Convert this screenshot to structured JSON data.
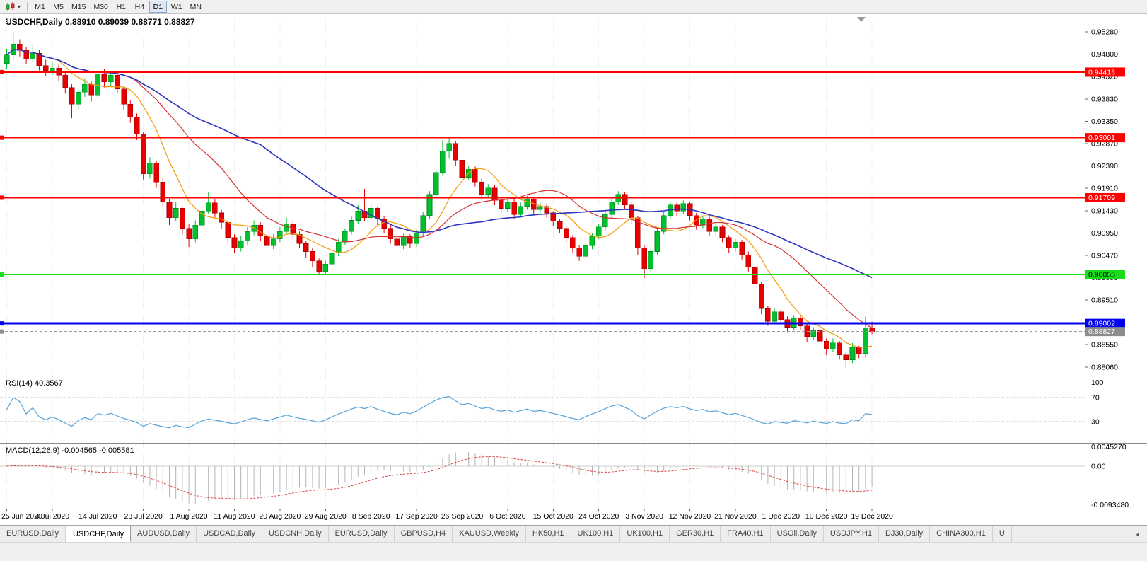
{
  "toolbar": {
    "dropdown_caret": "▾",
    "timeframes": [
      "M1",
      "M5",
      "M15",
      "M30",
      "H1",
      "H4",
      "D1",
      "W1",
      "MN"
    ],
    "active_timeframe": "D1"
  },
  "chart": {
    "symbol": "USDCHF",
    "period": "Daily",
    "title_text": "USDCHF,Daily 0.88910 0.89039 0.88771 0.88827",
    "ohlc": {
      "open": "0.88910",
      "high": "0.89039",
      "low": "0.88771",
      "close": "0.88827"
    },
    "up_color": "#00C02E",
    "down_color": "#E60000",
    "price_axis_ticks": [
      "0.95280",
      "0.94800",
      "0.94320",
      "0.93830",
      "0.93350",
      "0.92870",
      "0.92390",
      "0.91910",
      "0.91430",
      "0.90950",
      "0.90470",
      "0.89990",
      "0.89510",
      "0.89030",
      "0.88550",
      "0.88060"
    ],
    "hlines": [
      {
        "price": 0.94413,
        "label": "0.94413",
        "color": "#FF0000",
        "width": 1.8
      },
      {
        "price": 0.93001,
        "label": "0.93001",
        "color": "#FF0000",
        "width": 1.8
      },
      {
        "price": 0.91709,
        "label": "0.91709",
        "color": "#FF0000",
        "width": 1.8
      },
      {
        "price": 0.90055,
        "label": "0.90055",
        "color": "#18DD18",
        "width": 2,
        "text_color": "#000000"
      },
      {
        "price": 0.89002,
        "label": "0.89002",
        "color": "#0000F0",
        "width": 3
      }
    ],
    "bid": {
      "price": 0.88827,
      "label": "0.88827",
      "color": "#8c8c8c"
    },
    "date_labels": [
      "25 Jun 2020",
      "4 Jul 2020",
      "14 Jul 2020",
      "23 Jul 2020",
      "1 Aug 2020",
      "11 Aug 2020",
      "20 Aug 2020",
      "29 Aug 2020",
      "8 Sep 2020",
      "17 Sep 2020",
      "26 Sep 2020",
      "6 Oct 2020",
      "15 Oct 2020",
      "24 Oct 2020",
      "3 Nov 2020",
      "12 Nov 2020",
      "21 Nov 2020",
      "1 Dec 2020",
      "10 Dec 2020",
      "19 Dec 2020"
    ],
    "moving_averages": [
      {
        "name": "ma-fast",
        "period": 8,
        "color": "#F59B00",
        "width": 1.2
      },
      {
        "name": "ma-mid",
        "period": 20,
        "color": "#D93030",
        "width": 1.2
      },
      {
        "name": "ma-slow",
        "period": 40,
        "color": "#2A35C0",
        "width": 1.6
      }
    ],
    "candles": [
      [
        0.946,
        0.9492,
        0.9448,
        0.9478
      ],
      [
        0.9478,
        0.9528,
        0.947,
        0.9502
      ],
      [
        0.9502,
        0.9512,
        0.9475,
        0.9488
      ],
      [
        0.9488,
        0.9495,
        0.9458,
        0.947
      ],
      [
        0.947,
        0.95,
        0.9462,
        0.9482
      ],
      [
        0.9482,
        0.949,
        0.9445,
        0.9455
      ],
      [
        0.9455,
        0.9468,
        0.9432,
        0.9442
      ],
      [
        0.9442,
        0.9465,
        0.9435,
        0.945
      ],
      [
        0.945,
        0.9458,
        0.9422,
        0.9435
      ],
      [
        0.9435,
        0.9442,
        0.9395,
        0.9408
      ],
      [
        0.9408,
        0.9415,
        0.9342,
        0.9372
      ],
      [
        0.9372,
        0.9408,
        0.936,
        0.9398
      ],
      [
        0.9398,
        0.9428,
        0.9388,
        0.9415
      ],
      [
        0.9415,
        0.9422,
        0.9378,
        0.9392
      ],
      [
        0.9392,
        0.9445,
        0.9385,
        0.9438
      ],
      [
        0.9438,
        0.9448,
        0.9408,
        0.942
      ],
      [
        0.942,
        0.9442,
        0.941,
        0.9435
      ],
      [
        0.9435,
        0.944,
        0.9395,
        0.9405
      ],
      [
        0.9405,
        0.9412,
        0.936,
        0.9372
      ],
      [
        0.9372,
        0.938,
        0.9332,
        0.9345
      ],
      [
        0.9345,
        0.9352,
        0.9295,
        0.9308
      ],
      [
        0.9308,
        0.9312,
        0.921,
        0.9222
      ],
      [
        0.9222,
        0.9258,
        0.9212,
        0.9245
      ],
      [
        0.9245,
        0.925,
        0.9192,
        0.9205
      ],
      [
        0.9205,
        0.9215,
        0.915,
        0.9162
      ],
      [
        0.9162,
        0.9168,
        0.9112,
        0.9128
      ],
      [
        0.9128,
        0.9162,
        0.912,
        0.9148
      ],
      [
        0.9148,
        0.9152,
        0.9092,
        0.9105
      ],
      [
        0.9105,
        0.9115,
        0.9065,
        0.9082
      ],
      [
        0.9082,
        0.9122,
        0.9075,
        0.9112
      ],
      [
        0.9112,
        0.915,
        0.9105,
        0.9142
      ],
      [
        0.9142,
        0.9182,
        0.9135,
        0.916
      ],
      [
        0.916,
        0.9168,
        0.9128,
        0.9138
      ],
      [
        0.9138,
        0.9145,
        0.9105,
        0.9118
      ],
      [
        0.9118,
        0.9122,
        0.9072,
        0.9085
      ],
      [
        0.9085,
        0.9092,
        0.9052,
        0.9062
      ],
      [
        0.9062,
        0.9088,
        0.9055,
        0.9078
      ],
      [
        0.9078,
        0.9108,
        0.907,
        0.9098
      ],
      [
        0.9098,
        0.9122,
        0.909,
        0.9112
      ],
      [
        0.9112,
        0.9118,
        0.9078,
        0.9088
      ],
      [
        0.9088,
        0.9095,
        0.9058,
        0.9068
      ],
      [
        0.9068,
        0.9092,
        0.906,
        0.9082
      ],
      [
        0.9082,
        0.9108,
        0.9075,
        0.9098
      ],
      [
        0.9098,
        0.9128,
        0.9092,
        0.9115
      ],
      [
        0.9115,
        0.912,
        0.9082,
        0.9092
      ],
      [
        0.9092,
        0.9098,
        0.9062,
        0.9072
      ],
      [
        0.9072,
        0.9078,
        0.9042,
        0.9055
      ],
      [
        0.9055,
        0.9062,
        0.9022,
        0.9035
      ],
      [
        0.9035,
        0.904,
        0.9006,
        0.9012
      ],
      [
        0.9012,
        0.9035,
        0.9005,
        0.9028
      ],
      [
        0.9028,
        0.906,
        0.902,
        0.9052
      ],
      [
        0.9052,
        0.9082,
        0.9045,
        0.9075
      ],
      [
        0.9075,
        0.9105,
        0.9068,
        0.9098
      ],
      [
        0.9098,
        0.913,
        0.9092,
        0.9122
      ],
      [
        0.9122,
        0.9155,
        0.9115,
        0.9142
      ],
      [
        0.9142,
        0.919,
        0.912,
        0.9128
      ],
      [
        0.9128,
        0.9158,
        0.9122,
        0.9148
      ],
      [
        0.9148,
        0.9152,
        0.9112,
        0.9125
      ],
      [
        0.9125,
        0.9132,
        0.9095,
        0.9105
      ],
      [
        0.9105,
        0.9112,
        0.9072,
        0.9082
      ],
      [
        0.9082,
        0.909,
        0.9058,
        0.9068
      ],
      [
        0.9068,
        0.9095,
        0.906,
        0.9088
      ],
      [
        0.9088,
        0.9092,
        0.9062,
        0.9072
      ],
      [
        0.9072,
        0.9102,
        0.9065,
        0.9095
      ],
      [
        0.9095,
        0.914,
        0.9088,
        0.9132
      ],
      [
        0.9132,
        0.9185,
        0.9125,
        0.9178
      ],
      [
        0.9178,
        0.9232,
        0.917,
        0.9225
      ],
      [
        0.9225,
        0.9295,
        0.9218,
        0.9272
      ],
      [
        0.9272,
        0.9301,
        0.9255,
        0.9288
      ],
      [
        0.9288,
        0.9292,
        0.924,
        0.9252
      ],
      [
        0.9252,
        0.9258,
        0.9205,
        0.9215
      ],
      [
        0.9215,
        0.924,
        0.9208,
        0.9232
      ],
      [
        0.9232,
        0.9238,
        0.9195,
        0.9205
      ],
      [
        0.9205,
        0.9212,
        0.9168,
        0.9178
      ],
      [
        0.9178,
        0.92,
        0.917,
        0.9192
      ],
      [
        0.9192,
        0.9198,
        0.9155,
        0.9165
      ],
      [
        0.9165,
        0.9172,
        0.9138,
        0.9148
      ],
      [
        0.9148,
        0.917,
        0.914,
        0.9162
      ],
      [
        0.9162,
        0.9168,
        0.9125,
        0.9135
      ],
      [
        0.9135,
        0.916,
        0.9128,
        0.9152
      ],
      [
        0.9152,
        0.9175,
        0.9145,
        0.9168
      ],
      [
        0.9168,
        0.9172,
        0.9135,
        0.9145
      ],
      [
        0.9145,
        0.916,
        0.9138,
        0.9152
      ],
      [
        0.9152,
        0.9158,
        0.9128,
        0.9138
      ],
      [
        0.9138,
        0.9142,
        0.911,
        0.912
      ],
      [
        0.912,
        0.9125,
        0.9095,
        0.9105
      ],
      [
        0.9105,
        0.911,
        0.9075,
        0.9085
      ],
      [
        0.9085,
        0.909,
        0.9052,
        0.9062
      ],
      [
        0.9062,
        0.9068,
        0.9035,
        0.9045
      ],
      [
        0.9045,
        0.9075,
        0.904,
        0.9068
      ],
      [
        0.9068,
        0.9095,
        0.906,
        0.9088
      ],
      [
        0.9088,
        0.9115,
        0.9082,
        0.9108
      ],
      [
        0.9108,
        0.9142,
        0.91,
        0.9135
      ],
      [
        0.9135,
        0.917,
        0.9128,
        0.9162
      ],
      [
        0.9162,
        0.9185,
        0.9155,
        0.9178
      ],
      [
        0.9178,
        0.9182,
        0.9145,
        0.9155
      ],
      [
        0.9155,
        0.9162,
        0.9115,
        0.9128
      ],
      [
        0.9128,
        0.9132,
        0.9048,
        0.9062
      ],
      [
        0.9062,
        0.9068,
        0.8998,
        0.9018
      ],
      [
        0.9018,
        0.9062,
        0.9012,
        0.9055
      ],
      [
        0.9055,
        0.9105,
        0.9048,
        0.9098
      ],
      [
        0.9098,
        0.914,
        0.9092,
        0.9132
      ],
      [
        0.9132,
        0.9162,
        0.9125,
        0.9155
      ],
      [
        0.9155,
        0.916,
        0.9132,
        0.9142
      ],
      [
        0.9142,
        0.9165,
        0.9135,
        0.9158
      ],
      [
        0.9158,
        0.9162,
        0.9122,
        0.9132
      ],
      [
        0.9132,
        0.9138,
        0.9102,
        0.9112
      ],
      [
        0.9112,
        0.9132,
        0.9105,
        0.9125
      ],
      [
        0.9125,
        0.913,
        0.9088,
        0.9098
      ],
      [
        0.9098,
        0.9118,
        0.909,
        0.9108
      ],
      [
        0.9108,
        0.9112,
        0.9075,
        0.9085
      ],
      [
        0.9085,
        0.909,
        0.9052,
        0.9062
      ],
      [
        0.9062,
        0.9082,
        0.9055,
        0.9075
      ],
      [
        0.9075,
        0.908,
        0.9038,
        0.9048
      ],
      [
        0.9048,
        0.9055,
        0.9012,
        0.9022
      ],
      [
        0.9022,
        0.9028,
        0.8972,
        0.8985
      ],
      [
        0.8985,
        0.899,
        0.892,
        0.8932
      ],
      [
        0.8932,
        0.8938,
        0.8895,
        0.8905
      ],
      [
        0.8905,
        0.8932,
        0.8898,
        0.8925
      ],
      [
        0.8925,
        0.893,
        0.8898,
        0.8908
      ],
      [
        0.8908,
        0.8915,
        0.888,
        0.8892
      ],
      [
        0.8892,
        0.8918,
        0.8885,
        0.8912
      ],
      [
        0.8912,
        0.8918,
        0.8885,
        0.8895
      ],
      [
        0.8895,
        0.89,
        0.886,
        0.8872
      ],
      [
        0.8872,
        0.8892,
        0.8865,
        0.8885
      ],
      [
        0.8885,
        0.889,
        0.8852,
        0.8862
      ],
      [
        0.8862,
        0.8868,
        0.8832,
        0.8845
      ],
      [
        0.8845,
        0.8868,
        0.8838,
        0.8858
      ],
      [
        0.8858,
        0.8862,
        0.8822,
        0.8832
      ],
      [
        0.8832,
        0.8838,
        0.8806,
        0.8822
      ],
      [
        0.8822,
        0.8858,
        0.8815,
        0.8848
      ],
      [
        0.8848,
        0.8852,
        0.8825,
        0.8835
      ],
      [
        0.8835,
        0.8915,
        0.8828,
        0.8891
      ],
      [
        0.8891,
        0.89039,
        0.88771,
        0.88827
      ]
    ]
  },
  "indicators": {
    "rsi": {
      "label": "RSI(14) 40.3567",
      "period": 14,
      "value": 40.3567,
      "levels": [
        70,
        30
      ],
      "scale_labels": [
        "100",
        "70",
        "30"
      ],
      "color": "#58A5DA"
    },
    "macd": {
      "label": "MACD(12,26,9) -0.004565 -0.005581",
      "fast": 12,
      "slow": 26,
      "signal": 9,
      "value": -0.004565,
      "signal_value": -0.005581,
      "scale_labels": [
        "0.0045270",
        "0.00",
        "-0.0093480"
      ],
      "hist_color": "#B4B4B4",
      "signal_color": "#DB4444"
    }
  },
  "tabs": {
    "items": [
      "EURUSD,Daily",
      "USDCHF,Daily",
      "AUDUSD,Daily",
      "USDCAD,Daily",
      "USDCNH,Daily",
      "EURUSD,Daily",
      "GBPUSD,H4",
      "XAUUSD,Weekly",
      "HK50,H1",
      "UK100,H1",
      "UK100,H1",
      "GER30,H1",
      "FRA40,H1",
      "USOil,Daily",
      "USDJPY,H1",
      "DJ30,Daily",
      "CHINA300,H1",
      "U"
    ],
    "active_index": 1,
    "scroll_left": "◄"
  }
}
